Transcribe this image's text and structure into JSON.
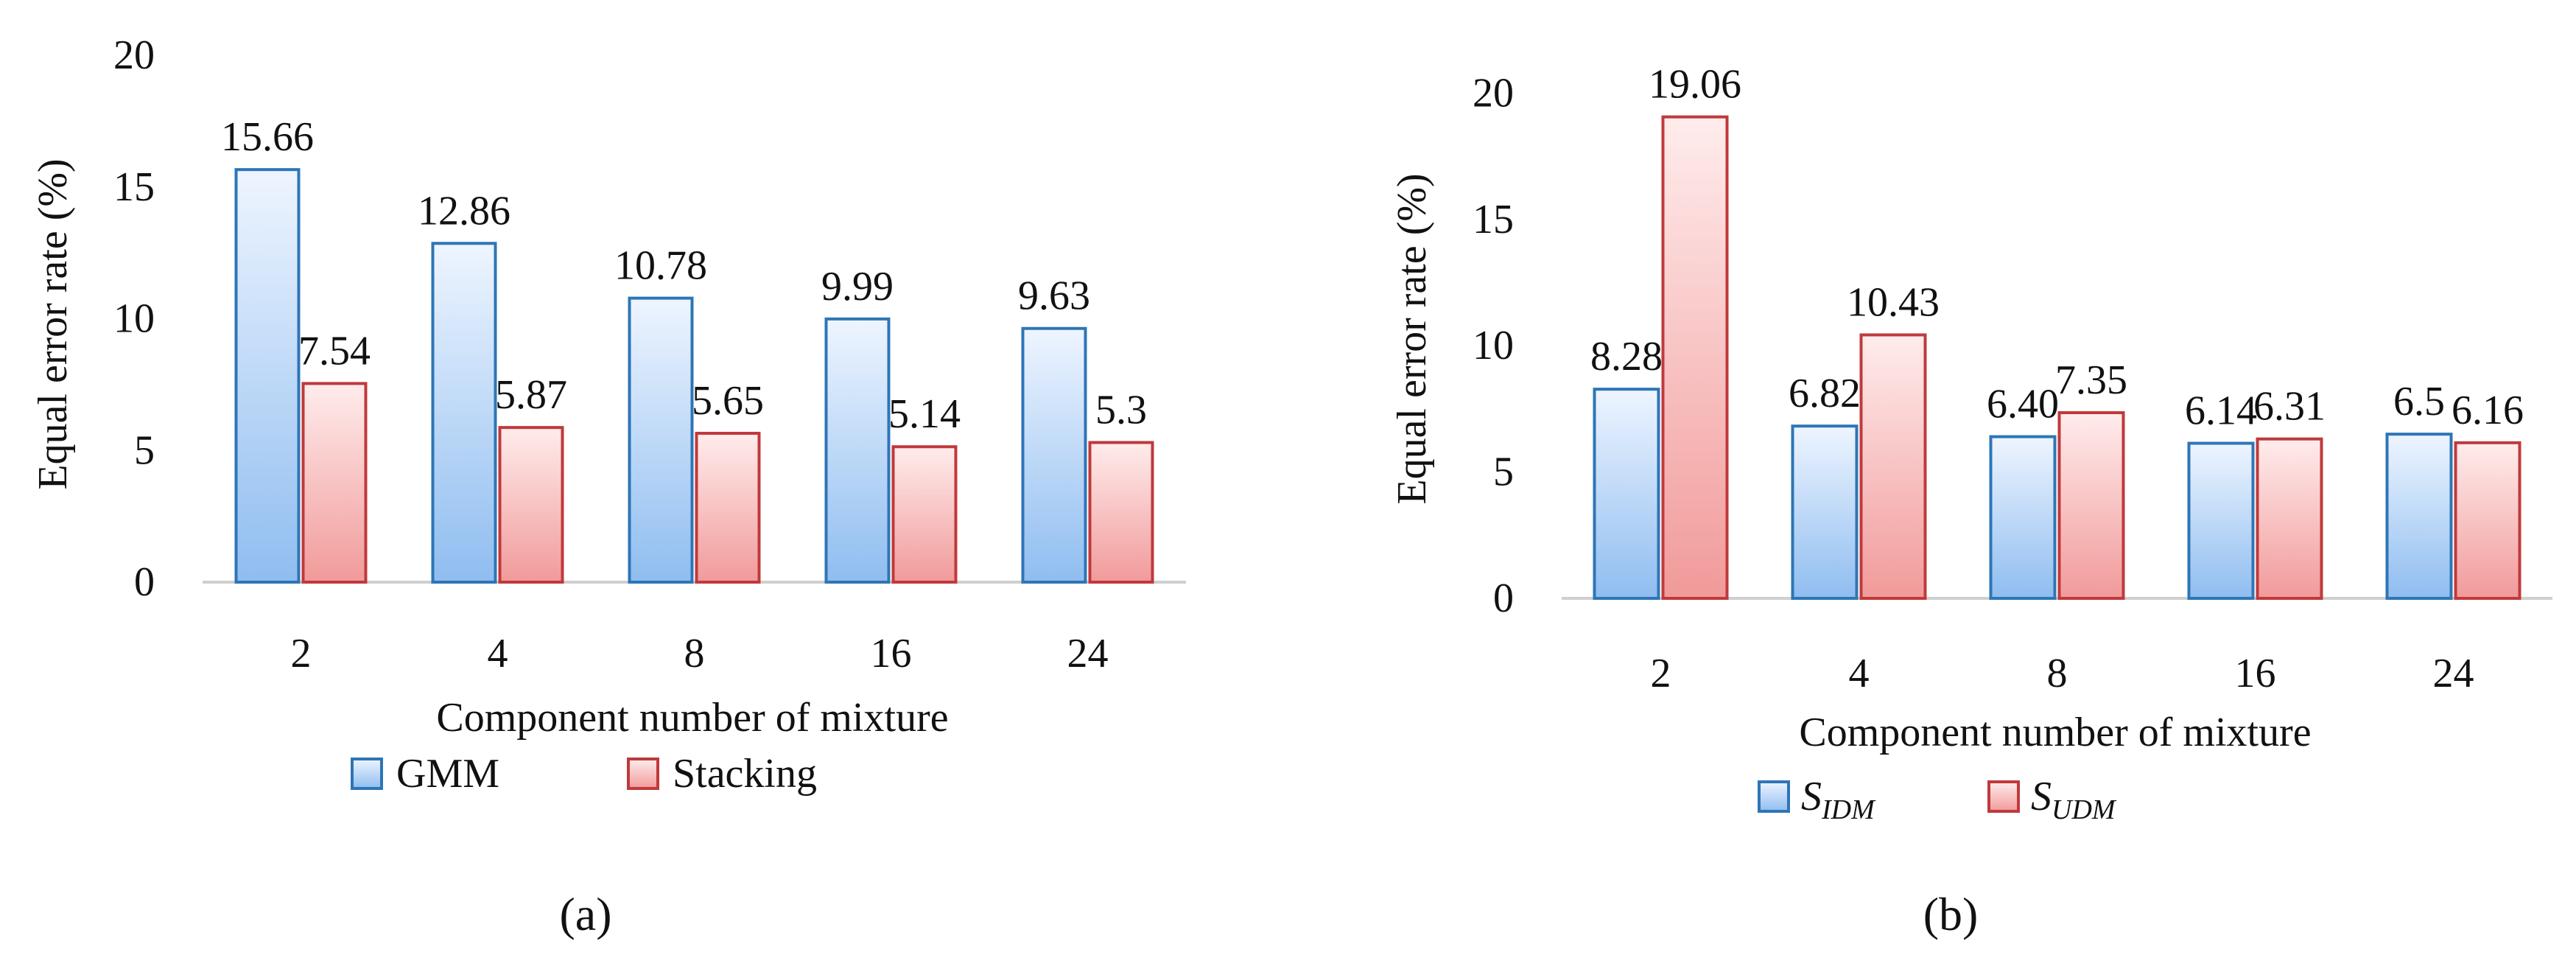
{
  "chart_data": [
    {
      "type": "bar",
      "panel_label": "(a)",
      "categories": [
        "2",
        "4",
        "8",
        "16",
        "24"
      ],
      "series": [
        {
          "name": "GMM",
          "values": [
            15.66,
            12.86,
            10.78,
            9.99,
            9.63
          ],
          "labels": [
            "15.66",
            "12.86",
            "10.78",
            "9.99",
            "9.63"
          ],
          "color": "#2e75b6"
        },
        {
          "name": "Stacking",
          "values": [
            7.54,
            5.87,
            5.65,
            5.14,
            5.3
          ],
          "labels": [
            "7.54",
            "5.87",
            "5.65",
            "5.14",
            "5.3"
          ],
          "color": "#c0393b"
        }
      ],
      "yticks": [
        "0",
        "5",
        "10",
        "15",
        "20"
      ],
      "ylim": [
        0,
        20
      ],
      "xlabel": "Component number of mixture",
      "ylabel": "Equal error rate (%)",
      "legend": "bottom"
    },
    {
      "type": "bar",
      "panel_label": "(b)",
      "categories": [
        "2",
        "4",
        "8",
        "16",
        "24"
      ],
      "series": [
        {
          "name": "S",
          "subscript": "IDM",
          "values": [
            8.28,
            6.82,
            6.4,
            6.14,
            6.5
          ],
          "labels": [
            "8.28",
            "6.82",
            "6.40",
            "6.14",
            "6.5"
          ],
          "color": "#2e75b6"
        },
        {
          "name": "S",
          "subscript": "UDM",
          "values": [
            19.06,
            10.43,
            7.35,
            6.31,
            6.16
          ],
          "labels": [
            "19.06",
            "10.43",
            "7.35",
            "6.31",
            "6.16"
          ],
          "color": "#c0393b"
        }
      ],
      "yticks": [
        "0",
        "5",
        "10",
        "15",
        "20"
      ],
      "ylim": [
        0,
        21.5
      ],
      "xlabel": "Component number of mixture",
      "ylabel": "Equal error rate (%)",
      "legend": "bottom"
    }
  ]
}
